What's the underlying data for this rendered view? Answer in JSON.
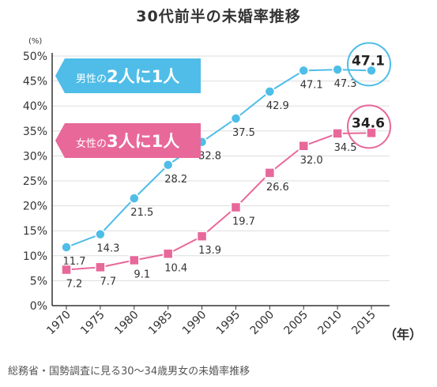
{
  "title": "30代前半の未婚率推移",
  "source": "総務省・国勢調査に見る30～34歳男女の未婚率推移",
  "colors": {
    "male": "#4FBDE8",
    "female": "#E8689A",
    "axis": "#333333",
    "grid": "#dddddd",
    "text": "#333333"
  },
  "banners": [
    {
      "id": "male",
      "prefix": "男性の",
      "big": "2人に1人"
    },
    {
      "id": "female",
      "prefix": "女性の",
      "big": "3人に1人"
    }
  ],
  "chart_data": {
    "type": "line",
    "categories": [
      "1970",
      "1975",
      "1980",
      "1985",
      "1990",
      "1995",
      "2000",
      "2005",
      "2010",
      "2015"
    ],
    "series": [
      {
        "name": "男性",
        "values": [
          11.7,
          14.3,
          21.5,
          28.2,
          32.8,
          37.5,
          42.9,
          47.1,
          47.3,
          47.1
        ]
      },
      {
        "name": "女性",
        "values": [
          7.2,
          7.7,
          9.1,
          10.4,
          13.9,
          19.7,
          26.6,
          32.0,
          34.5,
          34.6
        ]
      }
    ],
    "labels": [
      [
        "11.7",
        "14.3",
        "21.5",
        "28.2",
        "32.8",
        "37.5",
        "42.9",
        "47.1",
        "47.3",
        "47.1"
      ],
      [
        "7.2",
        "7.7",
        "9.1",
        "10.4",
        "13.9",
        "19.7",
        "26.6",
        "32.0",
        "34.5",
        "34.6"
      ]
    ],
    "ylim": [
      0,
      50
    ],
    "yticks": [
      "0%",
      "5%",
      "10%",
      "15%",
      "20%",
      "25%",
      "30%",
      "35%",
      "40%",
      "45%",
      "50%"
    ],
    "yunit": "(%)",
    "xunit": "（年）",
    "highlight_index": 9
  }
}
